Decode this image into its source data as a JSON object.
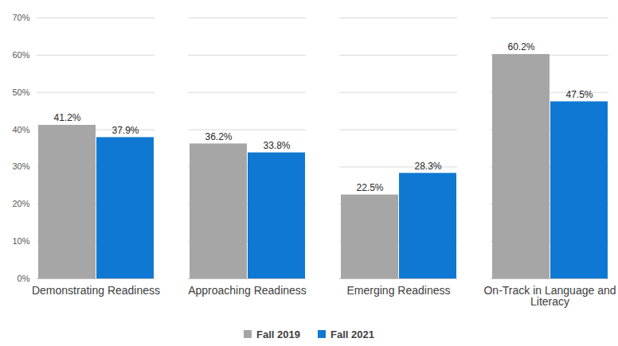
{
  "chart_data": {
    "type": "bar",
    "categories": [
      "Demonstrating Readiness",
      "Approaching Readiness",
      "Emerging Readiness",
      "On-Track in Language and Literacy"
    ],
    "series": [
      {
        "name": "Fall 2019",
        "color": "#a6a6a6",
        "values": [
          41.2,
          36.2,
          22.5,
          60.2
        ],
        "value_labels": [
          "41.2%",
          "36.2%",
          "22.5%",
          "60.2%"
        ]
      },
      {
        "name": "Fall 2021",
        "color": "#0f78d2",
        "values": [
          37.9,
          33.8,
          28.3,
          47.5
        ],
        "value_labels": [
          "37.9%",
          "33.8%",
          "28.3%",
          "47.5%"
        ]
      }
    ],
    "ylim": [
      0,
      70
    ],
    "yticks": [
      {
        "value": 0,
        "label": "0%"
      },
      {
        "value": 10,
        "label": "10%"
      },
      {
        "value": 20,
        "label": "20%"
      },
      {
        "value": 30,
        "label": "30%"
      },
      {
        "value": 40,
        "label": "40%"
      },
      {
        "value": 50,
        "label": "50%"
      },
      {
        "value": 60,
        "label": "60%"
      },
      {
        "value": 70,
        "label": "70%"
      }
    ],
    "grid": true,
    "data_labels": true,
    "legend": "bottom"
  }
}
